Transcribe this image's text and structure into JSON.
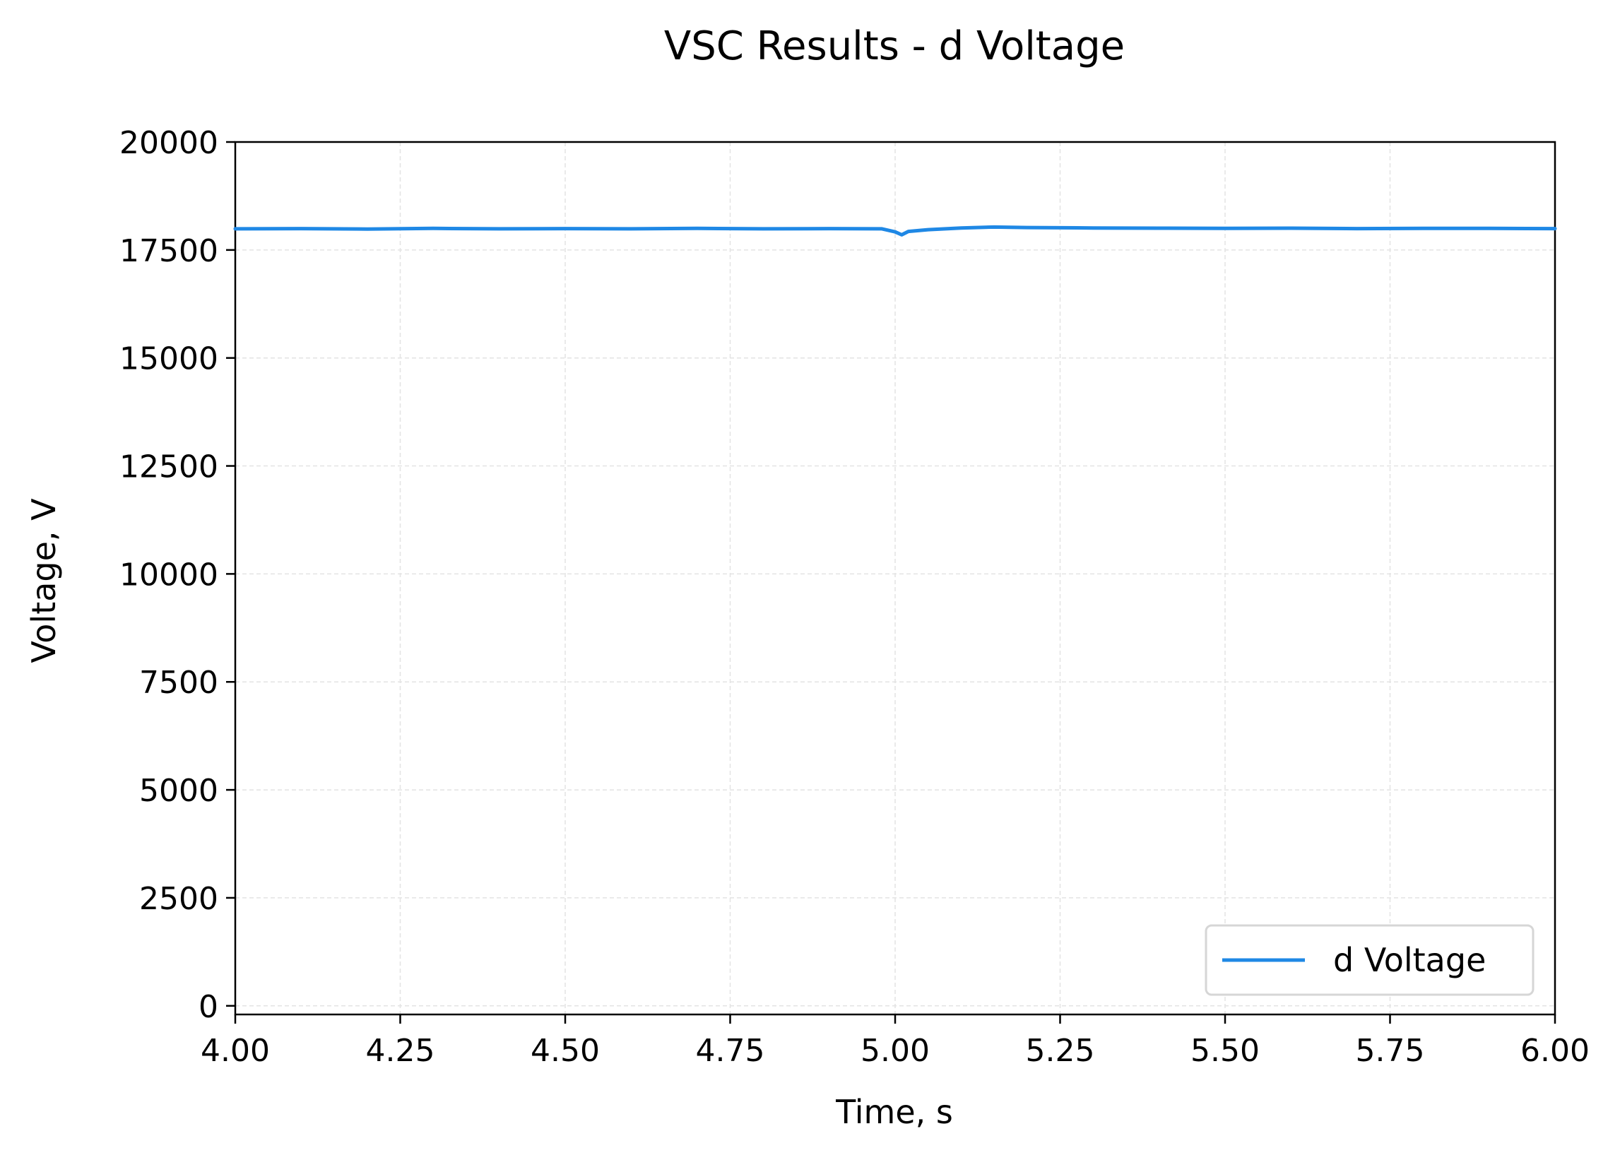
{
  "chart_data": {
    "type": "line",
    "title": "VSC Results - d Voltage",
    "xlabel": "Time, s",
    "ylabel": "Voltage, V",
    "xlim": [
      4.0,
      6.0
    ],
    "ylim": [
      -200,
      20000
    ],
    "xticks": [
      4.0,
      4.25,
      4.5,
      4.75,
      5.0,
      5.25,
      5.5,
      5.75,
      6.0
    ],
    "xtick_labels": [
      "4.00",
      "4.25",
      "4.50",
      "4.75",
      "5.00",
      "5.25",
      "5.50",
      "5.75",
      "6.00"
    ],
    "yticks": [
      0,
      2500,
      5000,
      7500,
      10000,
      12500,
      15000,
      17500,
      20000
    ],
    "ytick_labels": [
      "0",
      "2500",
      "5000",
      "7500",
      "10000",
      "12500",
      "15000",
      "17500",
      "20000"
    ],
    "grid": true,
    "legend_position": "lower-right",
    "series": [
      {
        "name": "d Voltage",
        "color": "#1f88e5",
        "x": [
          4.0,
          4.1,
          4.2,
          4.3,
          4.4,
          4.5,
          4.6,
          4.7,
          4.8,
          4.9,
          4.98,
          5.0,
          5.01,
          5.02,
          5.05,
          5.1,
          5.15,
          5.2,
          5.3,
          5.4,
          5.5,
          5.6,
          5.7,
          5.8,
          5.9,
          6.0
        ],
        "y": [
          17990,
          17995,
          17985,
          18000,
          17990,
          17995,
          17990,
          18000,
          17990,
          17995,
          17990,
          17920,
          17850,
          17930,
          17970,
          18010,
          18030,
          18020,
          18010,
          18005,
          18000,
          18005,
          17995,
          18000,
          18000,
          17995
        ]
      }
    ]
  }
}
